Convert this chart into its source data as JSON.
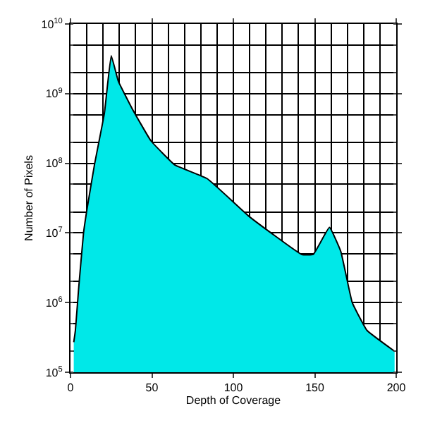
{
  "chart_data": {
    "type": "area",
    "xlabel": "Depth of Coverage",
    "ylabel": "Number of Pixels",
    "log": "y",
    "grid": true,
    "x": [
      2,
      3,
      5,
      8,
      10,
      14.7,
      20.8,
      25,
      29.4,
      38,
      49.4,
      64,
      84,
      110,
      142,
      149,
      159,
      166,
      173,
      182,
      199
    ],
    "series": [
      {
        "color": "#00e8e8",
        "values": [
          270000,
          400000,
          1600000,
          10000000,
          21000000,
          95000000,
          520000000,
          3500000000,
          1500000000,
          600000000,
          210000000,
          95000000,
          60000000,
          17000000,
          4900000,
          4900000,
          12000000,
          5400000,
          1000000,
          400000,
          200000
        ]
      }
    ],
    "xlim": [
      0,
      200
    ],
    "xticks": [
      0,
      50,
      100,
      150,
      200
    ],
    "ylim": [
      100000,
      10000000000
    ],
    "yticks": [
      {
        "value": 100000,
        "label": "10$^{5}$"
      },
      {
        "value": 1000000,
        "label": "10$^{6}$"
      },
      {
        "value": 10000000,
        "label": "10$^{7}$"
      },
      {
        "value": 100000000,
        "label": "10$^{8}$"
      },
      {
        "value": 1000000000,
        "label": "10$^{9}$"
      },
      {
        "value": 10000000000,
        "label": "10$^{10}$"
      }
    ]
  }
}
